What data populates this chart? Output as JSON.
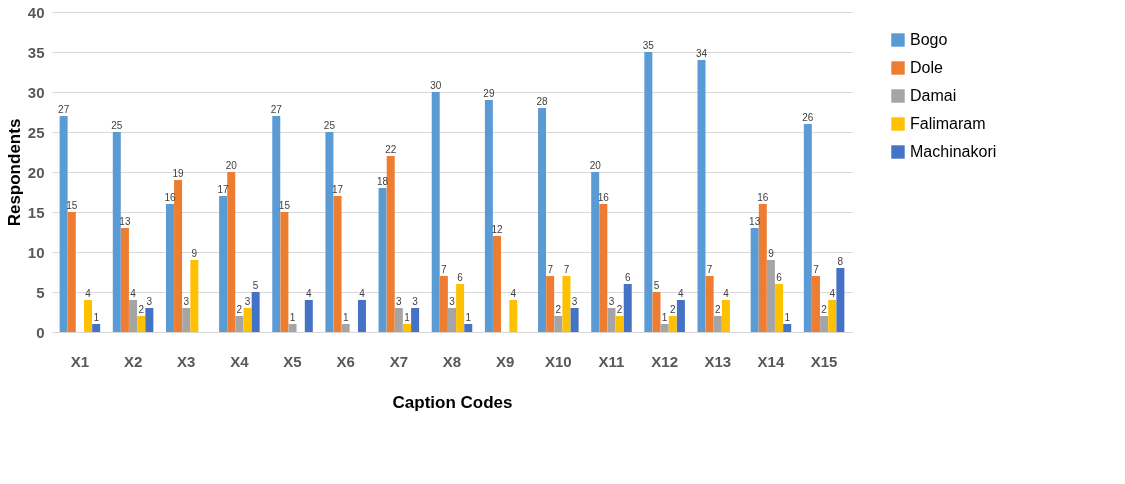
{
  "chart_data": {
    "type": "bar",
    "xlabel": "Caption Codes",
    "ylabel": "Respondents",
    "categories": [
      "X1",
      "X2",
      "X3",
      "X4",
      "X5",
      "X6",
      "X7",
      "X8",
      "X9",
      "X10",
      "X11",
      "X12",
      "X13",
      "X14",
      "X15"
    ],
    "series": [
      {
        "name": "Bogo",
        "color": "#5b9bd5",
        "values": [
          27,
          25,
          16,
          17,
          27,
          25,
          18,
          30,
          29,
          28,
          20,
          35,
          34,
          13,
          26
        ]
      },
      {
        "name": "Dole",
        "color": "#ed7d31",
        "values": [
          15,
          13,
          19,
          20,
          15,
          17,
          22,
          7,
          12,
          7,
          16,
          5,
          7,
          16,
          7
        ]
      },
      {
        "name": "Damai",
        "color": "#a5a5a5",
        "values": [
          null,
          4,
          3,
          2,
          1,
          1,
          3,
          3,
          null,
          2,
          3,
          1,
          2,
          9,
          2
        ]
      },
      {
        "name": "Falimaram",
        "color": "#ffc000",
        "values": [
          4,
          2,
          9,
          3,
          null,
          null,
          1,
          6,
          4,
          7,
          2,
          2,
          4,
          6,
          4
        ]
      },
      {
        "name": "Machinakori",
        "color": "#4472c4",
        "values": [
          1,
          3,
          null,
          5,
          4,
          4,
          3,
          1,
          null,
          3,
          6,
          4,
          null,
          1,
          8
        ]
      }
    ],
    "ylim": [
      0,
      40
    ],
    "yticks": [
      0,
      5,
      10,
      15,
      20,
      25,
      30,
      35,
      40
    ],
    "grid": "y",
    "legend": "right",
    "data_labels": true
  }
}
